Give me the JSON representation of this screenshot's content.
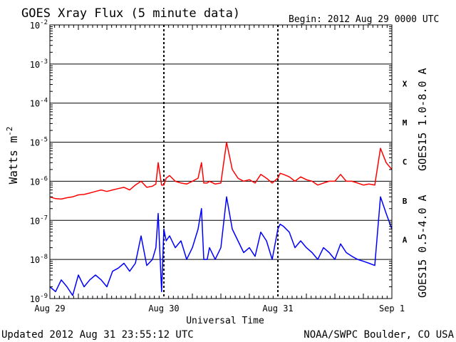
{
  "chart_data": {
    "type": "line",
    "title": "GOES Xray Flux (5 minute data)",
    "begin_label": "Begin:  2012 Aug 29 0000 UTC",
    "ylabel": "Watts m",
    "ylabel_sup": "-2",
    "xlabel": "Universal Time",
    "y_scale": "log",
    "ylim": [
      1e-09,
      0.01
    ],
    "y_ticks": [
      {
        "value": 1e-09,
        "mant": "10",
        "exp": "-9"
      },
      {
        "value": 1e-08,
        "mant": "10",
        "exp": "-8"
      },
      {
        "value": 1e-07,
        "mant": "10",
        "exp": "-7"
      },
      {
        "value": 1e-06,
        "mant": "10",
        "exp": "-6"
      },
      {
        "value": 1e-05,
        "mant": "10",
        "exp": "-5"
      },
      {
        "value": 0.0001,
        "mant": "10",
        "exp": "-4"
      },
      {
        "value": 0.001,
        "mant": "10",
        "exp": "-3"
      },
      {
        "value": 0.01,
        "mant": "10",
        "exp": "-2"
      }
    ],
    "x_ticks": [
      {
        "day": 0,
        "label": "Aug 29"
      },
      {
        "day": 1,
        "label": "Aug 30"
      },
      {
        "day": 2,
        "label": "Aug 31"
      },
      {
        "day": 3,
        "label": "Sep 1"
      }
    ],
    "xlim": [
      0,
      3
    ],
    "flare_classes": [
      {
        "label": "X",
        "value": 0.000316
      },
      {
        "label": "M",
        "value": 3.16e-05
      },
      {
        "label": "C",
        "value": 3.16e-06
      },
      {
        "label": "B",
        "value": 3.16e-07
      },
      {
        "label": "A",
        "value": 3.16e-08
      }
    ],
    "series": [
      {
        "name": "GOES15 1.0-8.0 A",
        "color": "#ff0000",
        "x": [
          0,
          0.05,
          0.1,
          0.15,
          0.2,
          0.25,
          0.3,
          0.35,
          0.4,
          0.45,
          0.5,
          0.55,
          0.6,
          0.65,
          0.7,
          0.75,
          0.8,
          0.85,
          0.9,
          0.93,
          0.95,
          0.98,
          1.0,
          1.02,
          1.05,
          1.1,
          1.15,
          1.2,
          1.25,
          1.3,
          1.33,
          1.35,
          1.38,
          1.4,
          1.45,
          1.5,
          1.55,
          1.6,
          1.65,
          1.7,
          1.75,
          1.8,
          1.85,
          1.9,
          1.95,
          2.0,
          2.02,
          2.05,
          2.1,
          2.15,
          2.2,
          2.25,
          2.3,
          2.35,
          2.4,
          2.45,
          2.5,
          2.55,
          2.6,
          2.65,
          2.7,
          2.75,
          2.8,
          2.85,
          2.9,
          2.95,
          3.0
        ],
        "y": [
          4e-07,
          3.6e-07,
          3.5e-07,
          3.8e-07,
          4e-07,
          4.5e-07,
          4.6e-07,
          5e-07,
          5.5e-07,
          6e-07,
          5.5e-07,
          6e-07,
          6.5e-07,
          7e-07,
          6e-07,
          8e-07,
          1e-06,
          7e-07,
          7.5e-07,
          8.5e-07,
          3e-06,
          8e-07,
          8e-07,
          1.2e-06,
          1.4e-06,
          1e-06,
          9e-07,
          8.5e-07,
          1e-06,
          1.2e-06,
          3e-06,
          9e-07,
          9e-07,
          1e-06,
          8.5e-07,
          9e-07,
          1e-05,
          2e-06,
          1.2e-06,
          1e-06,
          1.1e-06,
          9e-07,
          1.5e-06,
          1.2e-06,
          9e-07,
          1.2e-06,
          1.6e-06,
          1.5e-06,
          1.3e-06,
          1e-06,
          1.3e-06,
          1.1e-06,
          1e-06,
          8e-07,
          9e-07,
          1e-06,
          1e-06,
          1.5e-06,
          1e-06,
          1e-06,
          9e-07,
          8e-07,
          8.5e-07,
          8e-07,
          7e-06,
          3e-06,
          2e-06
        ]
      },
      {
        "name": "GOES15 0.5-4.0 A",
        "color": "#0000ff",
        "x": [
          0,
          0.05,
          0.1,
          0.15,
          0.2,
          0.25,
          0.3,
          0.35,
          0.4,
          0.45,
          0.5,
          0.55,
          0.6,
          0.65,
          0.7,
          0.75,
          0.8,
          0.85,
          0.9,
          0.93,
          0.95,
          0.98,
          1.0,
          1.02,
          1.05,
          1.1,
          1.15,
          1.2,
          1.25,
          1.3,
          1.33,
          1.35,
          1.38,
          1.4,
          1.45,
          1.5,
          1.55,
          1.6,
          1.65,
          1.7,
          1.75,
          1.8,
          1.85,
          1.9,
          1.95,
          2.0,
          2.02,
          2.05,
          2.1,
          2.15,
          2.2,
          2.25,
          2.3,
          2.35,
          2.4,
          2.45,
          2.5,
          2.55,
          2.6,
          2.65,
          2.7,
          2.75,
          2.8,
          2.85,
          2.9,
          2.95,
          3.0
        ],
        "y": [
          2e-09,
          1.5e-09,
          3e-09,
          2e-09,
          1.2e-09,
          4e-09,
          2e-09,
          3e-09,
          4e-09,
          3e-09,
          2e-09,
          5e-09,
          6e-09,
          8e-09,
          5e-09,
          8e-09,
          4e-08,
          7e-09,
          1e-08,
          2e-08,
          1.5e-07,
          1.5e-09,
          6e-08,
          3e-08,
          4e-08,
          2e-08,
          3e-08,
          1e-08,
          2e-08,
          6e-08,
          2e-07,
          1e-08,
          1e-08,
          2e-08,
          1e-08,
          2e-08,
          4e-07,
          6e-08,
          3e-08,
          1.5e-08,
          2e-08,
          1.2e-08,
          5e-08,
          3e-08,
          1e-08,
          6e-08,
          8e-08,
          7e-08,
          5e-08,
          2e-08,
          3e-08,
          2e-08,
          1.5e-08,
          1e-08,
          2e-08,
          1.5e-08,
          1e-08,
          2.5e-08,
          1.5e-08,
          1.2e-08,
          1e-08,
          9e-09,
          8e-09,
          7e-09,
          4e-07,
          1.5e-07,
          6e-08
        ]
      }
    ]
  },
  "footer": {
    "updated": "Updated 2012 Aug 31 23:55:12 UTC",
    "source": "NOAA/SWPC Boulder, CO USA"
  }
}
